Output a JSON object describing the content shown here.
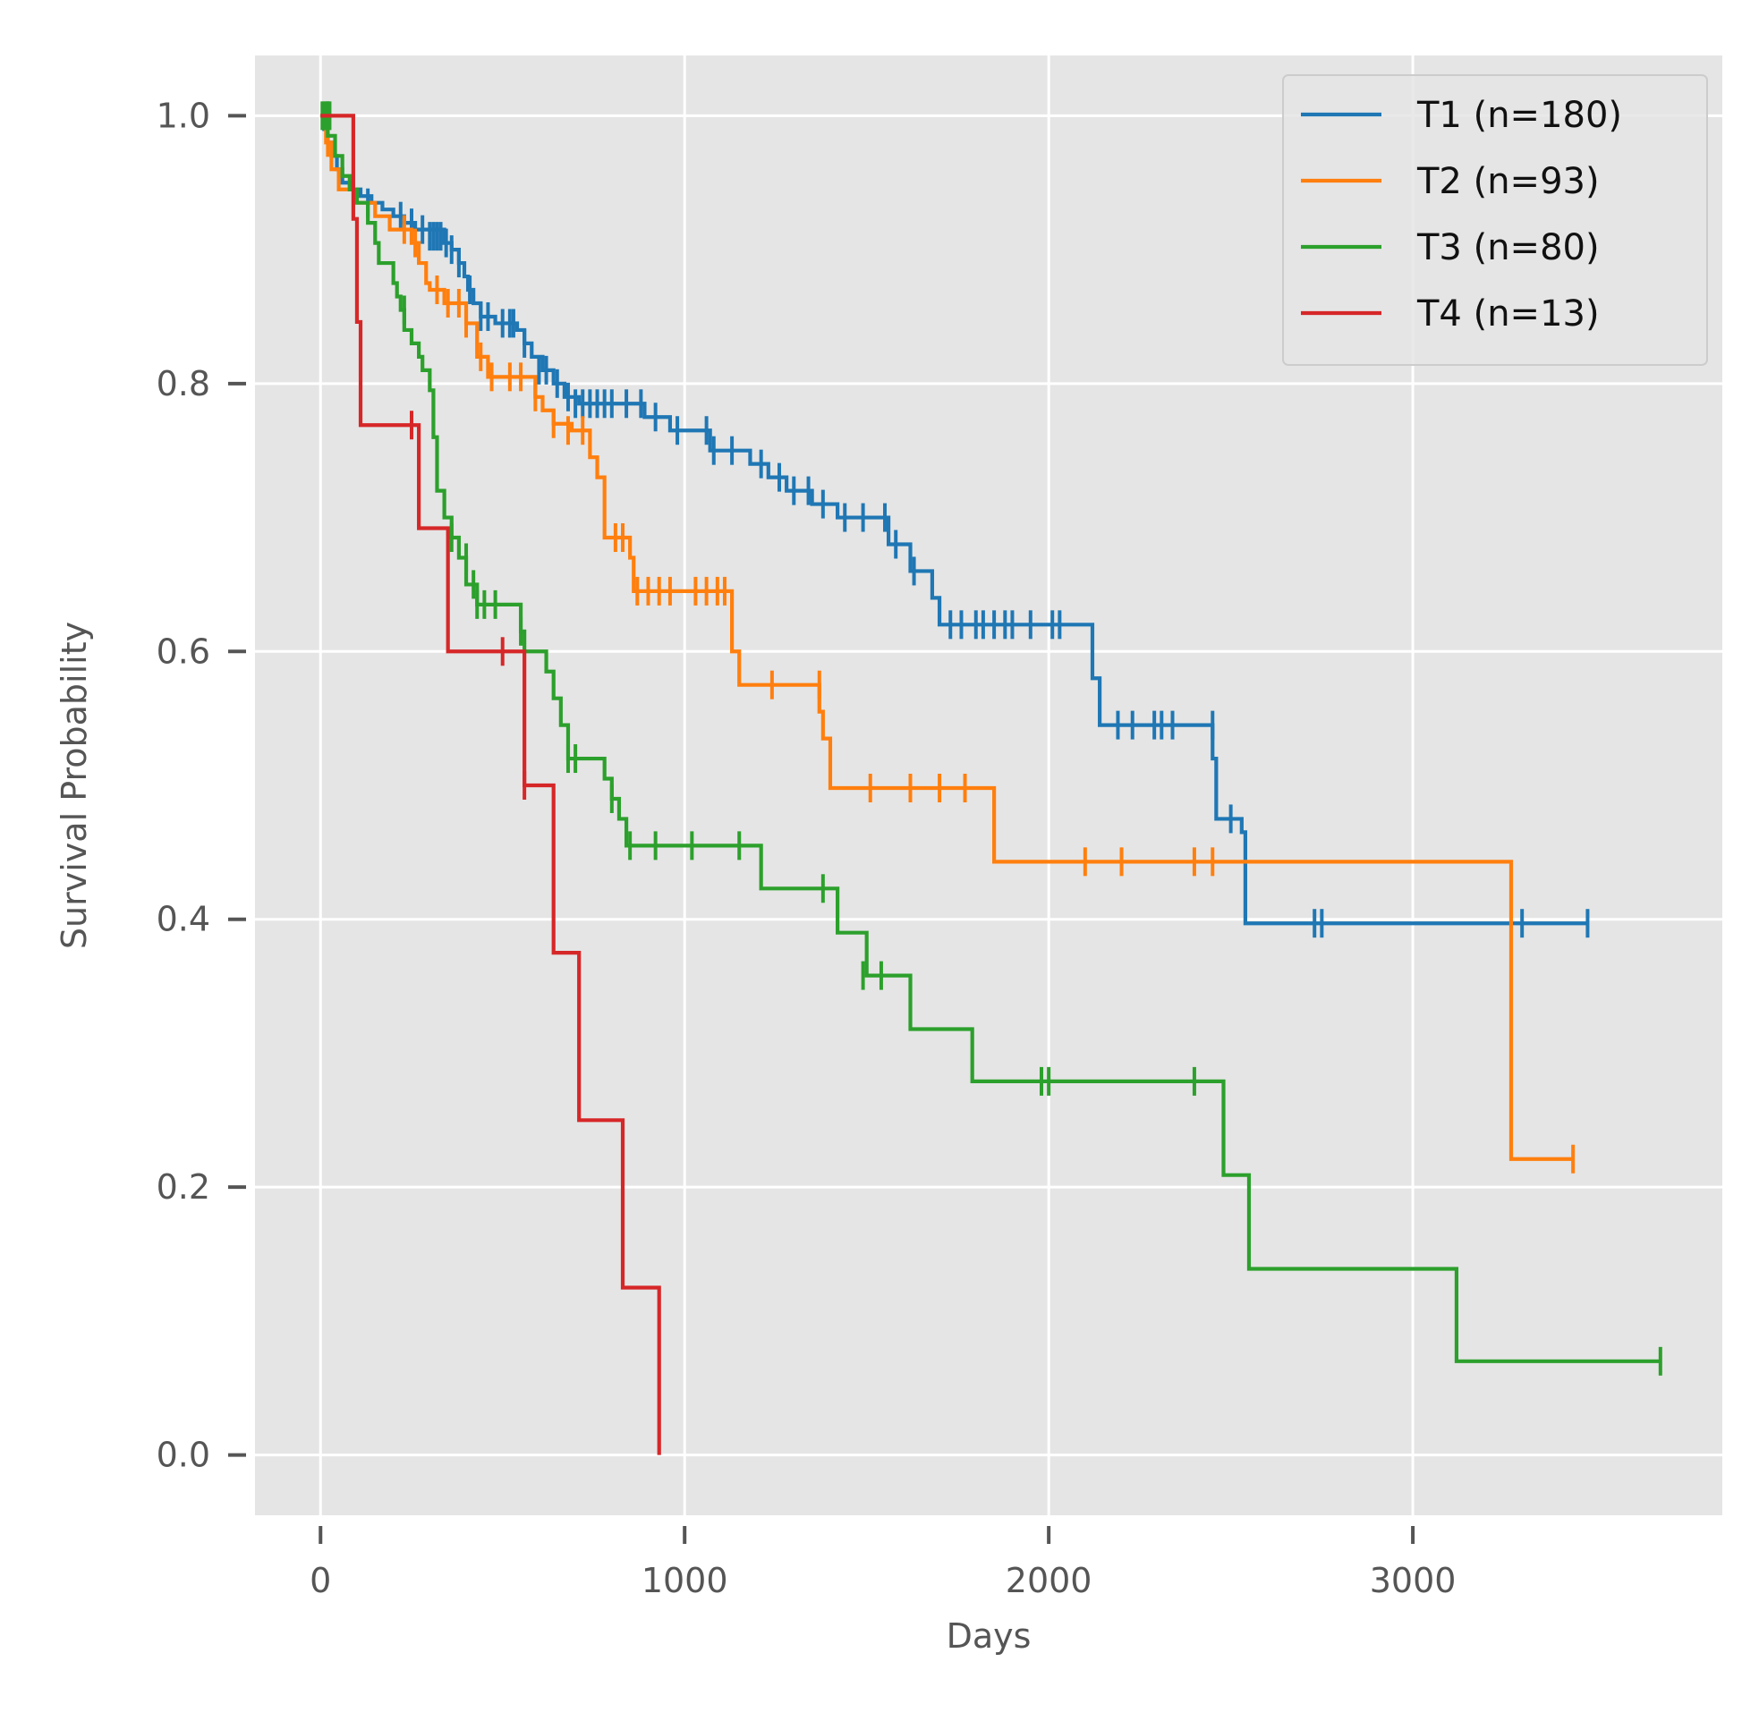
{
  "chart_data": {
    "type": "line",
    "subtype": "kaplan-meier step",
    "title": "",
    "xlabel": "Days",
    "ylabel": "Survival Probability",
    "xlim": [
      -180,
      3850
    ],
    "ylim": [
      -0.045,
      1.045
    ],
    "x_ticks": [
      0,
      1000,
      2000,
      3000
    ],
    "x_tick_labels": [
      "0",
      "1000",
      "2000",
      "3000"
    ],
    "y_ticks": [
      0.0,
      0.2,
      0.4,
      0.6,
      0.8,
      1.0
    ],
    "y_tick_labels": [
      "0.0",
      "0.2",
      "0.4",
      "0.6",
      "0.8",
      "1.0"
    ],
    "grid": true,
    "background": "#e5e5e5",
    "legend_position": "top-right",
    "series": [
      {
        "name": "T1 (n=180)",
        "color": "#1f77b4",
        "steps": [
          [
            0,
            1.0
          ],
          [
            10,
            0.99
          ],
          [
            20,
            0.98
          ],
          [
            30,
            0.97
          ],
          [
            45,
            0.96
          ],
          [
            60,
            0.95
          ],
          [
            80,
            0.945
          ],
          [
            110,
            0.94
          ],
          [
            140,
            0.935
          ],
          [
            170,
            0.93
          ],
          [
            200,
            0.925
          ],
          [
            230,
            0.92
          ],
          [
            260,
            0.915
          ],
          [
            340,
            0.905
          ],
          [
            360,
            0.9
          ],
          [
            380,
            0.89
          ],
          [
            395,
            0.88
          ],
          [
            405,
            0.87
          ],
          [
            420,
            0.86
          ],
          [
            440,
            0.85
          ],
          [
            480,
            0.845
          ],
          [
            540,
            0.84
          ],
          [
            560,
            0.83
          ],
          [
            580,
            0.82
          ],
          [
            610,
            0.81
          ],
          [
            640,
            0.8
          ],
          [
            670,
            0.79
          ],
          [
            710,
            0.785
          ],
          [
            890,
            0.775
          ],
          [
            960,
            0.765
          ],
          [
            1070,
            0.75
          ],
          [
            1180,
            0.74
          ],
          [
            1230,
            0.73
          ],
          [
            1280,
            0.72
          ],
          [
            1350,
            0.71
          ],
          [
            1420,
            0.7
          ],
          [
            1560,
            0.68
          ],
          [
            1620,
            0.66
          ],
          [
            1680,
            0.64
          ],
          [
            1700,
            0.62
          ],
          [
            2120,
            0.58
          ],
          [
            2140,
            0.545
          ],
          [
            2450,
            0.52
          ],
          [
            2460,
            0.475
          ],
          [
            2530,
            0.465
          ],
          [
            2540,
            0.397
          ],
          [
            3480,
            0.397
          ]
        ],
        "censors": [
          [
            20,
            1.0
          ],
          [
            130,
            0.935
          ],
          [
            220,
            0.925
          ],
          [
            250,
            0.92
          ],
          [
            280,
            0.915
          ],
          [
            300,
            0.91
          ],
          [
            310,
            0.91
          ],
          [
            320,
            0.91
          ],
          [
            330,
            0.91
          ],
          [
            345,
            0.905
          ],
          [
            360,
            0.9
          ],
          [
            380,
            0.89
          ],
          [
            410,
            0.87
          ],
          [
            440,
            0.85
          ],
          [
            460,
            0.85
          ],
          [
            500,
            0.845
          ],
          [
            520,
            0.845
          ],
          [
            530,
            0.845
          ],
          [
            560,
            0.83
          ],
          [
            600,
            0.81
          ],
          [
            620,
            0.81
          ],
          [
            650,
            0.8
          ],
          [
            680,
            0.79
          ],
          [
            700,
            0.785
          ],
          [
            720,
            0.785
          ],
          [
            740,
            0.785
          ],
          [
            760,
            0.785
          ],
          [
            780,
            0.785
          ],
          [
            800,
            0.785
          ],
          [
            840,
            0.785
          ],
          [
            880,
            0.785
          ],
          [
            920,
            0.775
          ],
          [
            980,
            0.765
          ],
          [
            1060,
            0.765
          ],
          [
            1080,
            0.75
          ],
          [
            1130,
            0.75
          ],
          [
            1210,
            0.74
          ],
          [
            1260,
            0.73
          ],
          [
            1300,
            0.72
          ],
          [
            1340,
            0.72
          ],
          [
            1380,
            0.71
          ],
          [
            1440,
            0.7
          ],
          [
            1490,
            0.7
          ],
          [
            1550,
            0.7
          ],
          [
            1580,
            0.68
          ],
          [
            1630,
            0.66
          ],
          [
            1730,
            0.62
          ],
          [
            1760,
            0.62
          ],
          [
            1800,
            0.62
          ],
          [
            1820,
            0.62
          ],
          [
            1850,
            0.62
          ],
          [
            1880,
            0.62
          ],
          [
            1900,
            0.62
          ],
          [
            1950,
            0.62
          ],
          [
            2010,
            0.62
          ],
          [
            2030,
            0.62
          ],
          [
            2190,
            0.545
          ],
          [
            2230,
            0.545
          ],
          [
            2290,
            0.545
          ],
          [
            2310,
            0.545
          ],
          [
            2340,
            0.545
          ],
          [
            2450,
            0.545
          ],
          [
            2500,
            0.475
          ],
          [
            2730,
            0.397
          ],
          [
            2750,
            0.397
          ],
          [
            3300,
            0.397
          ],
          [
            3480,
            0.397
          ]
        ]
      },
      {
        "name": "T2 (n=93)",
        "color": "#ff7f0e",
        "steps": [
          [
            0,
            1.0
          ],
          [
            15,
            0.98
          ],
          [
            30,
            0.96
          ],
          [
            50,
            0.945
          ],
          [
            100,
            0.935
          ],
          [
            150,
            0.925
          ],
          [
            190,
            0.915
          ],
          [
            250,
            0.905
          ],
          [
            270,
            0.89
          ],
          [
            290,
            0.875
          ],
          [
            300,
            0.87
          ],
          [
            340,
            0.86
          ],
          [
            400,
            0.845
          ],
          [
            430,
            0.82
          ],
          [
            460,
            0.805
          ],
          [
            590,
            0.79
          ],
          [
            610,
            0.78
          ],
          [
            640,
            0.77
          ],
          [
            690,
            0.765
          ],
          [
            740,
            0.745
          ],
          [
            760,
            0.73
          ],
          [
            780,
            0.685
          ],
          [
            850,
            0.67
          ],
          [
            860,
            0.645
          ],
          [
            1130,
            0.6
          ],
          [
            1150,
            0.575
          ],
          [
            1370,
            0.555
          ],
          [
            1380,
            0.535
          ],
          [
            1400,
            0.498
          ],
          [
            1850,
            0.443
          ],
          [
            3260,
            0.443
          ],
          [
            3270,
            0.221
          ],
          [
            3440,
            0.221
          ]
        ],
        "censors": [
          [
            20,
            0.98
          ],
          [
            230,
            0.915
          ],
          [
            260,
            0.905
          ],
          [
            320,
            0.87
          ],
          [
            350,
            0.86
          ],
          [
            380,
            0.86
          ],
          [
            400,
            0.845
          ],
          [
            440,
            0.82
          ],
          [
            470,
            0.805
          ],
          [
            520,
            0.805
          ],
          [
            550,
            0.805
          ],
          [
            590,
            0.79
          ],
          [
            640,
            0.77
          ],
          [
            680,
            0.765
          ],
          [
            720,
            0.765
          ],
          [
            810,
            0.685
          ],
          [
            830,
            0.685
          ],
          [
            870,
            0.645
          ],
          [
            900,
            0.645
          ],
          [
            930,
            0.645
          ],
          [
            960,
            0.645
          ],
          [
            1030,
            0.645
          ],
          [
            1060,
            0.645
          ],
          [
            1090,
            0.645
          ],
          [
            1110,
            0.645
          ],
          [
            1240,
            0.575
          ],
          [
            1370,
            0.575
          ],
          [
            1510,
            0.498
          ],
          [
            1620,
            0.498
          ],
          [
            1700,
            0.498
          ],
          [
            1770,
            0.498
          ],
          [
            2100,
            0.443
          ],
          [
            2200,
            0.443
          ],
          [
            2400,
            0.443
          ],
          [
            2450,
            0.443
          ],
          [
            3440,
            0.221
          ]
        ]
      },
      {
        "name": "T3 (n=80)",
        "color": "#2ca02c",
        "steps": [
          [
            0,
            1.0
          ],
          [
            20,
            0.985
          ],
          [
            40,
            0.97
          ],
          [
            60,
            0.955
          ],
          [
            80,
            0.945
          ],
          [
            100,
            0.935
          ],
          [
            130,
            0.92
          ],
          [
            150,
            0.905
          ],
          [
            160,
            0.89
          ],
          [
            200,
            0.875
          ],
          [
            210,
            0.865
          ],
          [
            220,
            0.855
          ],
          [
            230,
            0.84
          ],
          [
            250,
            0.83
          ],
          [
            270,
            0.82
          ],
          [
            280,
            0.81
          ],
          [
            300,
            0.795
          ],
          [
            310,
            0.76
          ],
          [
            320,
            0.72
          ],
          [
            340,
            0.7
          ],
          [
            360,
            0.685
          ],
          [
            380,
            0.67
          ],
          [
            400,
            0.65
          ],
          [
            430,
            0.635
          ],
          [
            550,
            0.615
          ],
          [
            560,
            0.6
          ],
          [
            620,
            0.585
          ],
          [
            640,
            0.565
          ],
          [
            660,
            0.545
          ],
          [
            680,
            0.52
          ],
          [
            780,
            0.505
          ],
          [
            800,
            0.49
          ],
          [
            820,
            0.475
          ],
          [
            840,
            0.455
          ],
          [
            1210,
            0.423
          ],
          [
            1420,
            0.39
          ],
          [
            1500,
            0.358
          ],
          [
            1620,
            0.318
          ],
          [
            1790,
            0.279
          ],
          [
            2480,
            0.209
          ],
          [
            2550,
            0.139
          ],
          [
            3120,
            0.07
          ],
          [
            3680,
            0.07
          ]
        ],
        "censors": [
          [
            5,
            1.0
          ],
          [
            10,
            1.0
          ],
          [
            15,
            1.0
          ],
          [
            20,
            1.0
          ],
          [
            25,
            1.0
          ],
          [
            230,
            0.855
          ],
          [
            360,
            0.685
          ],
          [
            400,
            0.67
          ],
          [
            420,
            0.65
          ],
          [
            430,
            0.635
          ],
          [
            450,
            0.635
          ],
          [
            480,
            0.635
          ],
          [
            550,
            0.615
          ],
          [
            680,
            0.52
          ],
          [
            700,
            0.52
          ],
          [
            800,
            0.49
          ],
          [
            850,
            0.455
          ],
          [
            920,
            0.455
          ],
          [
            1020,
            0.455
          ],
          [
            1150,
            0.455
          ],
          [
            1380,
            0.423
          ],
          [
            1490,
            0.358
          ],
          [
            1540,
            0.358
          ],
          [
            1980,
            0.279
          ],
          [
            2000,
            0.279
          ],
          [
            2400,
            0.279
          ],
          [
            3680,
            0.07
          ]
        ]
      },
      {
        "name": "T4 (n=13)",
        "color": "#d62728",
        "steps": [
          [
            0,
            1.0
          ],
          [
            90,
            0.923
          ],
          [
            100,
            0.846
          ],
          [
            110,
            0.769
          ],
          [
            270,
            0.692
          ],
          [
            350,
            0.6
          ],
          [
            560,
            0.5
          ],
          [
            640,
            0.375
          ],
          [
            710,
            0.25
          ],
          [
            830,
            0.125
          ],
          [
            930,
            0.0
          ]
        ],
        "censors": [
          [
            250,
            0.769
          ],
          [
            500,
            0.6
          ],
          [
            560,
            0.5
          ]
        ]
      }
    ]
  }
}
